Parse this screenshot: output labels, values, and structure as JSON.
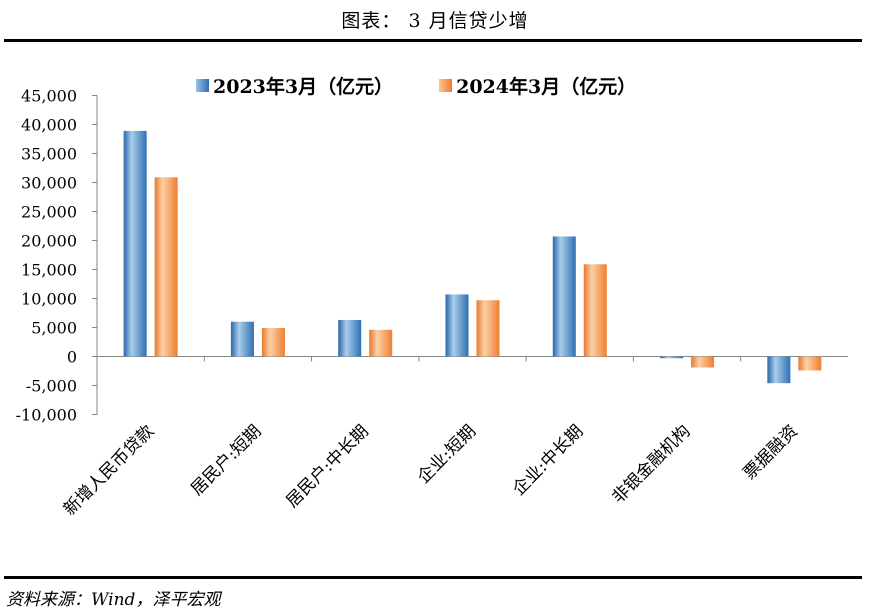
{
  "header": {
    "title": "图表： 3 月信贷少增"
  },
  "footer": {
    "source": "资料来源：Wind，泽平宏观"
  },
  "colors": {
    "series_2023": "#3a7fc0",
    "series_2024": "#f08a3a"
  },
  "chart_data": {
    "type": "bar",
    "title": "图表： 3 月信贷少增",
    "xlabel": "",
    "ylabel": "",
    "ylim": [
      -10000,
      45000
    ],
    "yticks": [
      45000,
      40000,
      35000,
      30000,
      25000,
      20000,
      15000,
      10000,
      5000,
      0,
      -5000,
      -10000
    ],
    "ytick_labels": [
      "45,000",
      "40,000",
      "35,000",
      "30,000",
      "25,000",
      "20,000",
      "15,000",
      "10,000",
      "5,000",
      "0",
      "-5,000",
      "-10,000"
    ],
    "categories": [
      "新增人民币贷款",
      "居民户:短期",
      "居民户:中长期",
      "企业:短期",
      "企业:中长期",
      "非银金融机构",
      "票据融资"
    ],
    "series": [
      {
        "name": "2023年3月（亿元）",
        "values": [
          38900,
          6000,
          6300,
          10700,
          20700,
          -300,
          -4600
        ]
      },
      {
        "name": "2024年3月（亿元）",
        "values": [
          30900,
          4900,
          4600,
          9700,
          15900,
          -1900,
          -2400
        ]
      }
    ],
    "legend_position": "top"
  }
}
